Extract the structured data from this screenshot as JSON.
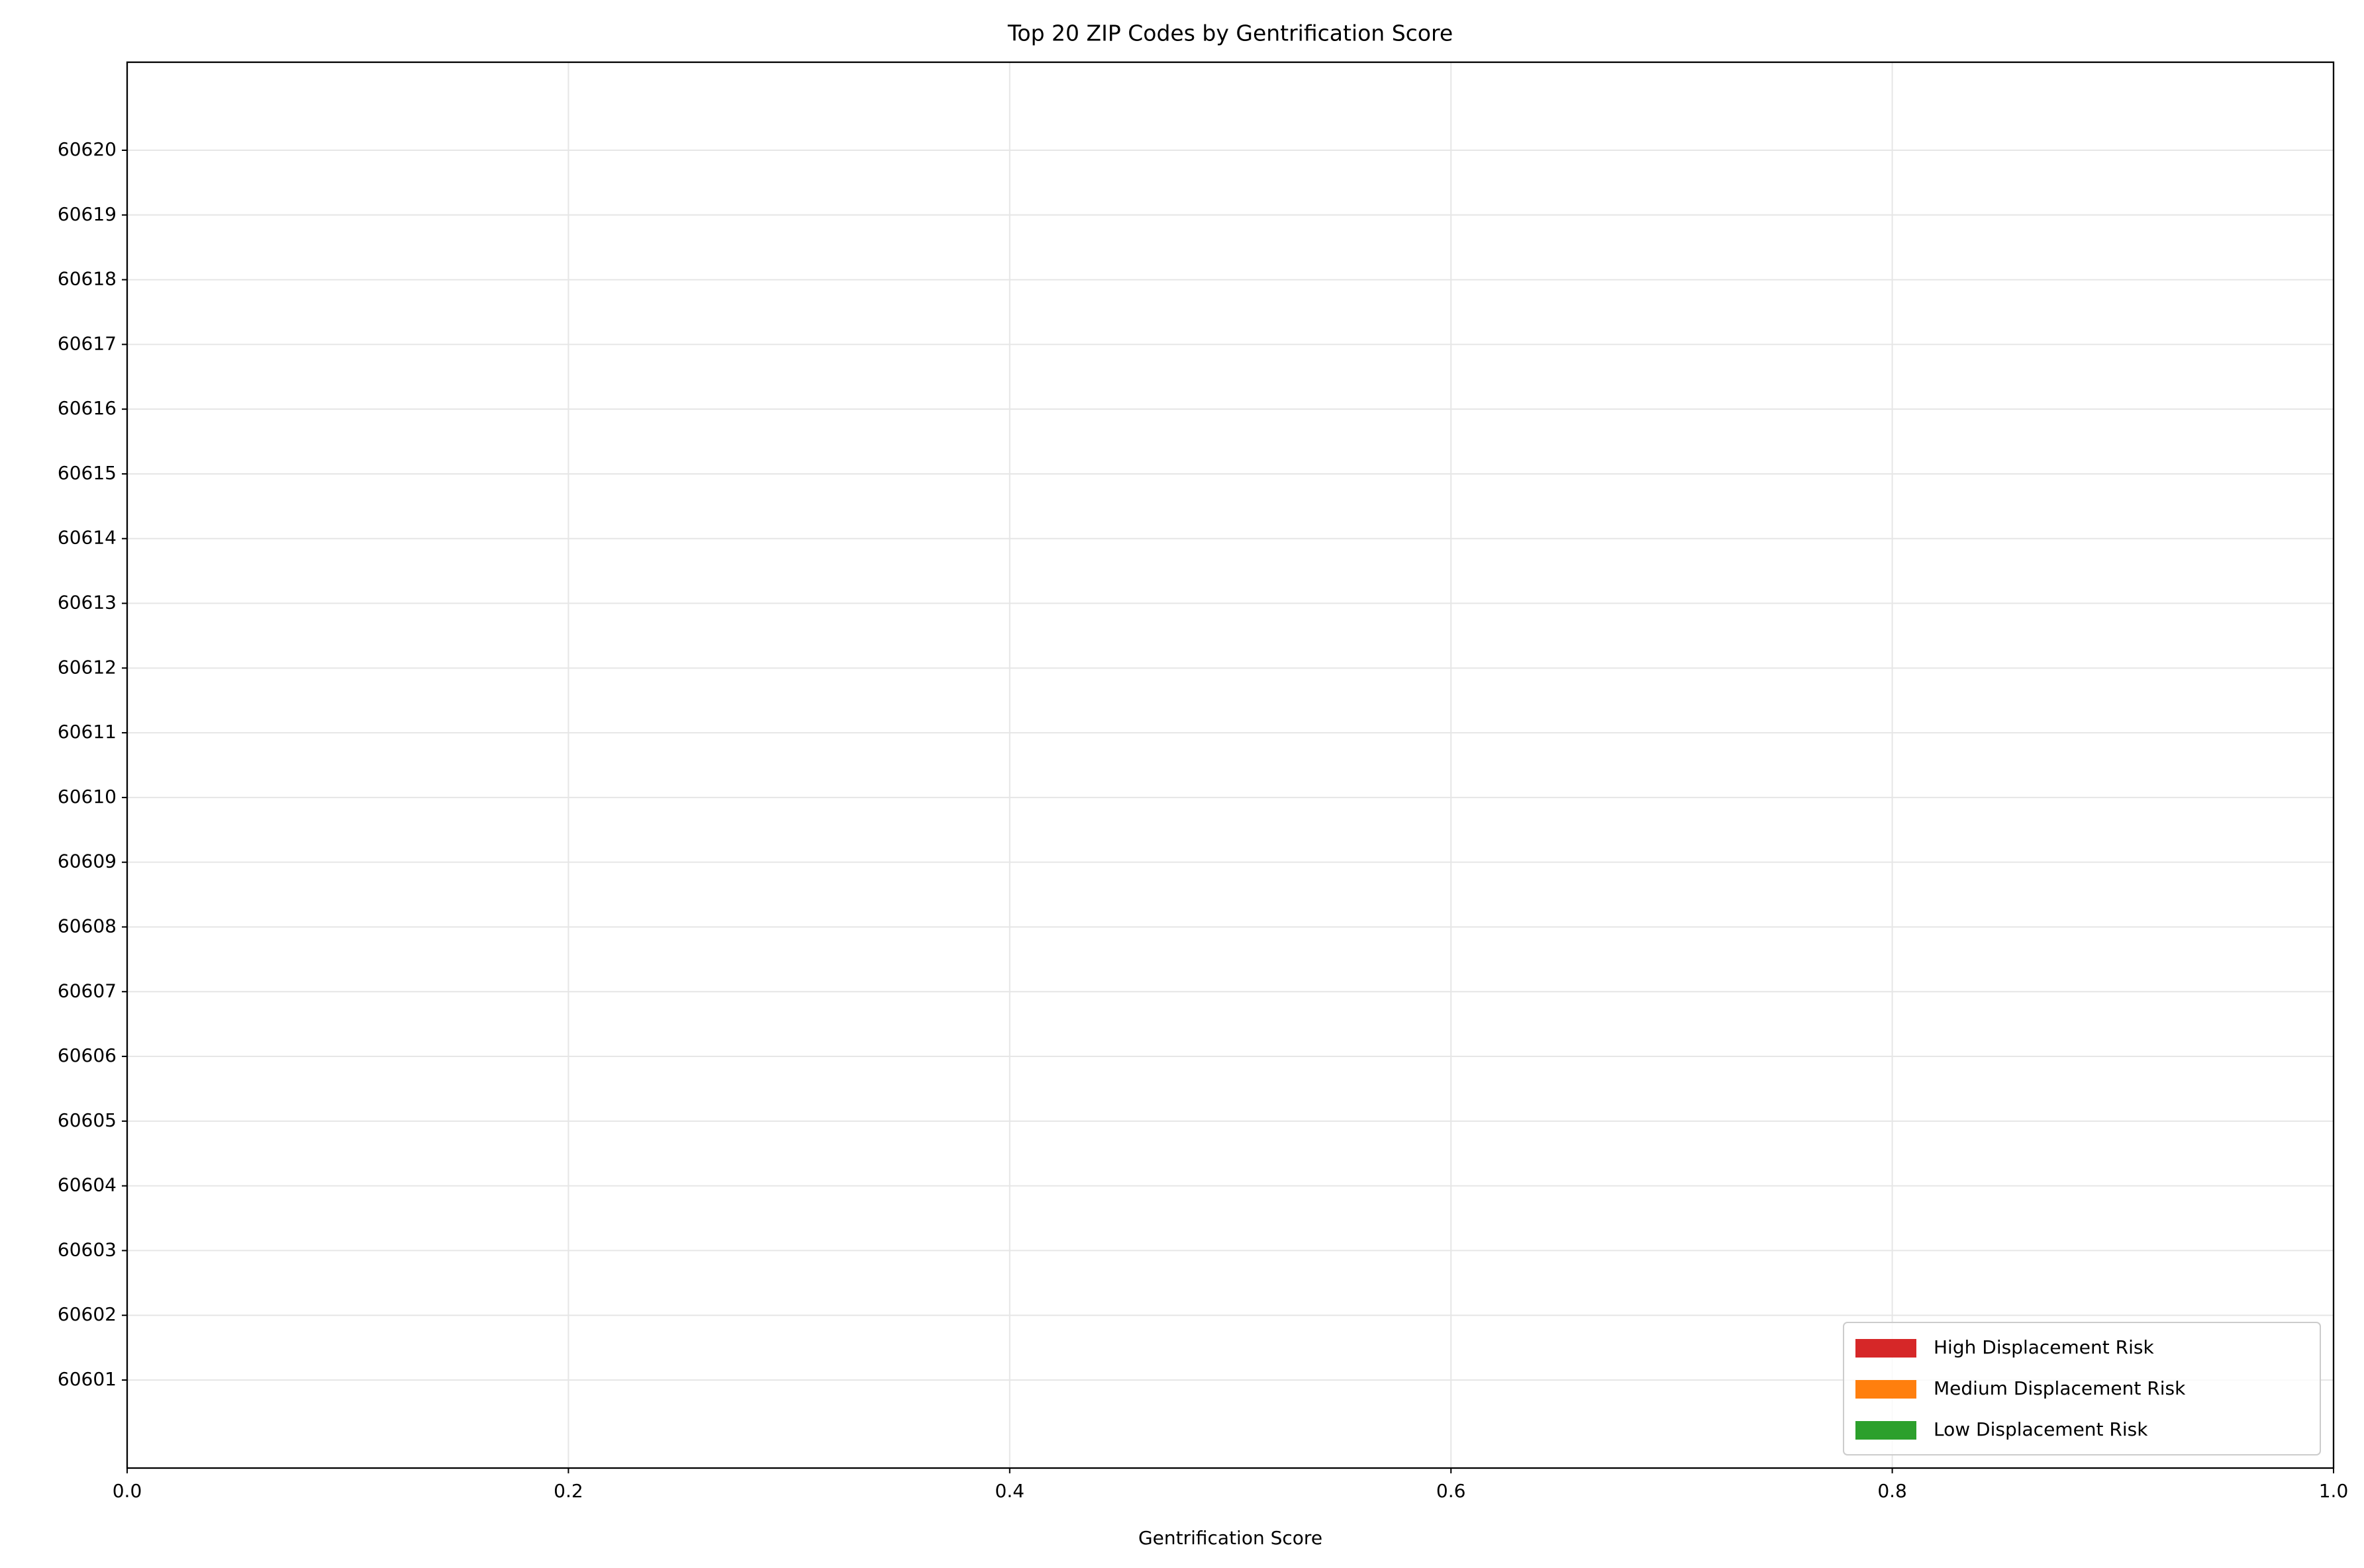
{
  "chart_data": {
    "type": "barh",
    "title": "Top 20 ZIP Codes by Gentrification Score",
    "xlabel": "Gentrification Score",
    "categories": [
      "60601",
      "60602",
      "60603",
      "60604",
      "60605",
      "60606",
      "60607",
      "60608",
      "60609",
      "60610",
      "60611",
      "60612",
      "60613",
      "60614",
      "60615",
      "60616",
      "60617",
      "60618",
      "60619",
      "60620"
    ],
    "series": [
      {
        "name": "High Displacement Risk",
        "color": "#d62728"
      },
      {
        "name": "Medium Displacement Risk",
        "color": "#ff7f0e"
      },
      {
        "name": "Low Displacement Risk",
        "color": "#2ca02c"
      }
    ],
    "xlim": [
      0,
      1
    ],
    "xticks": [
      {
        "value": 0,
        "label": "0.0"
      },
      0.2,
      0.4,
      0.6,
      0.8,
      {
        "value": 1,
        "label": "1.0"
      }
    ],
    "grid": true,
    "legend": "lower right"
  }
}
